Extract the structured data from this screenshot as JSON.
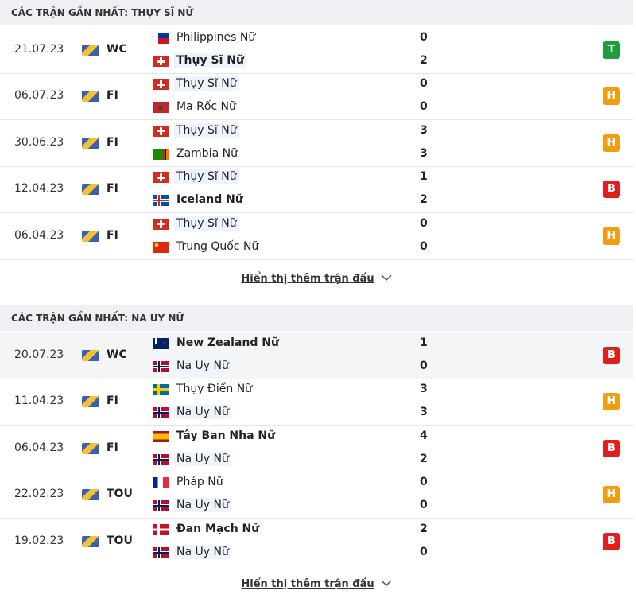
{
  "sections": [
    {
      "title": "CÁC TRẬN GẦN NHẤT: THỤY SĨ NỮ",
      "matches": [
        {
          "date": "21.07.23",
          "competition": "WC",
          "home": {
            "name": "Philippines Nữ",
            "score": 0
          },
          "away": {
            "name": "Thụy Sĩ Nữ",
            "score": 2
          },
          "result": {
            "label": "T",
            "color": "#1f9d3b"
          }
        },
        {
          "date": "06.07.23",
          "competition": "FI",
          "home": {
            "name": "Thụy Sĩ Nữ",
            "score": 0
          },
          "away": {
            "name": "Ma Rốc Nữ",
            "score": 0
          },
          "result": {
            "label": "H",
            "color": "#f39c12"
          }
        },
        {
          "date": "30.06.23",
          "competition": "FI",
          "home": {
            "name": "Thụy Sĩ Nữ",
            "score": 3
          },
          "away": {
            "name": "Zambia Nữ",
            "score": 3
          },
          "result": {
            "label": "H",
            "color": "#f39c12"
          }
        },
        {
          "date": "12.04.23",
          "competition": "FI",
          "home": {
            "name": "Thụy Sĩ Nữ",
            "score": 1
          },
          "away": {
            "name": "Iceland Nữ",
            "score": 2
          },
          "result": {
            "label": "B",
            "color": "#e01e1e"
          }
        },
        {
          "date": "06.04.23",
          "competition": "FI",
          "home": {
            "name": "Thụy Sĩ Nữ",
            "score": 0
          },
          "away": {
            "name": "Trung Quốc Nữ",
            "score": 0
          },
          "result": {
            "label": "H",
            "color": "#f39c12"
          }
        }
      ],
      "more": "Hiển thị thêm trận đấu"
    },
    {
      "title": "CÁC TRẬN GẦN NHẤT: NA UY NỮ",
      "matches": [
        {
          "date": "20.07.23",
          "competition": "WC",
          "home": {
            "name": "New Zealand Nữ",
            "score": 1
          },
          "away": {
            "name": "Na Uy Nữ",
            "score": 0
          },
          "result": {
            "label": "B",
            "color": "#e01e1e"
          }
        },
        {
          "date": "11.04.23",
          "competition": "FI",
          "home": {
            "name": "Thụy Điển Nữ",
            "score": 3
          },
          "away": {
            "name": "Na Uy Nữ",
            "score": 3
          },
          "result": {
            "label": "H",
            "color": "#f39c12"
          }
        },
        {
          "date": "06.04.23",
          "competition": "FI",
          "home": {
            "name": "Tây Ban Nha Nữ",
            "score": 4
          },
          "away": {
            "name": "Na Uy Nữ",
            "score": 2
          },
          "result": {
            "label": "B",
            "color": "#e01e1e"
          }
        },
        {
          "date": "22.02.23",
          "competition": "TOU",
          "home": {
            "name": "Pháp Nữ",
            "score": 0
          },
          "away": {
            "name": "Na Uy Nữ",
            "score": 0
          },
          "result": {
            "label": "H",
            "color": "#f39c12"
          }
        },
        {
          "date": "19.02.23",
          "competition": "TOU",
          "home": {
            "name": "Đan Mạch Nữ",
            "score": 2
          },
          "away": {
            "name": "Na Uy Nữ",
            "score": 0
          },
          "result": {
            "label": "B",
            "color": "#e01e1e"
          }
        }
      ],
      "more": "Hiển thị thêm trận đấu"
    }
  ]
}
